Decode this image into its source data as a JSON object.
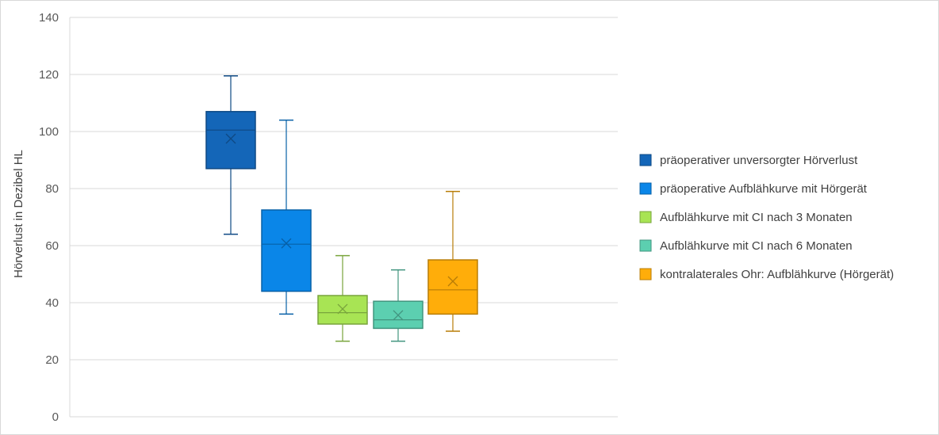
{
  "chart_data": {
    "type": "box",
    "ylabel": "Hörverlust in Dezibel HL",
    "ylim": [
      0,
      140
    ],
    "yticks": [
      0,
      20,
      40,
      60,
      80,
      100,
      120,
      140
    ],
    "grid": true,
    "legend_position": "right",
    "series": [
      {
        "name": "präoperativer unversorgter Hörverlust",
        "color": "#1466b8",
        "min": 64,
        "q1": 87,
        "median": 100.5,
        "q3": 107,
        "max": 119.5,
        "mean": 97.5
      },
      {
        "name": "präoperative Aufblähkurve mit Hörgerät",
        "color": "#0a86e8",
        "min": 36,
        "q1": 44,
        "median": 60.5,
        "q3": 72.5,
        "max": 104,
        "mean": 60.8
      },
      {
        "name": "Aufblähkurve mit CI nach 3 Monaten",
        "color": "#a8e454",
        "min": 26.5,
        "q1": 32.5,
        "median": 36.5,
        "q3": 42.5,
        "max": 56.5,
        "mean": 37.8
      },
      {
        "name": "Aufblähkurve mit CI nach 6 Monaten",
        "color": "#5ccfb0",
        "min": 26.5,
        "q1": 31,
        "median": 34,
        "q3": 40.5,
        "max": 51.5,
        "mean": 35.6
      },
      {
        "name": "kontralaterales Ohr: Aufblähkurve (Hörgerät)",
        "color": "#ffad0a",
        "min": 30,
        "q1": 36,
        "median": 44.5,
        "q3": 55,
        "max": 79,
        "mean": 47.5
      }
    ]
  }
}
